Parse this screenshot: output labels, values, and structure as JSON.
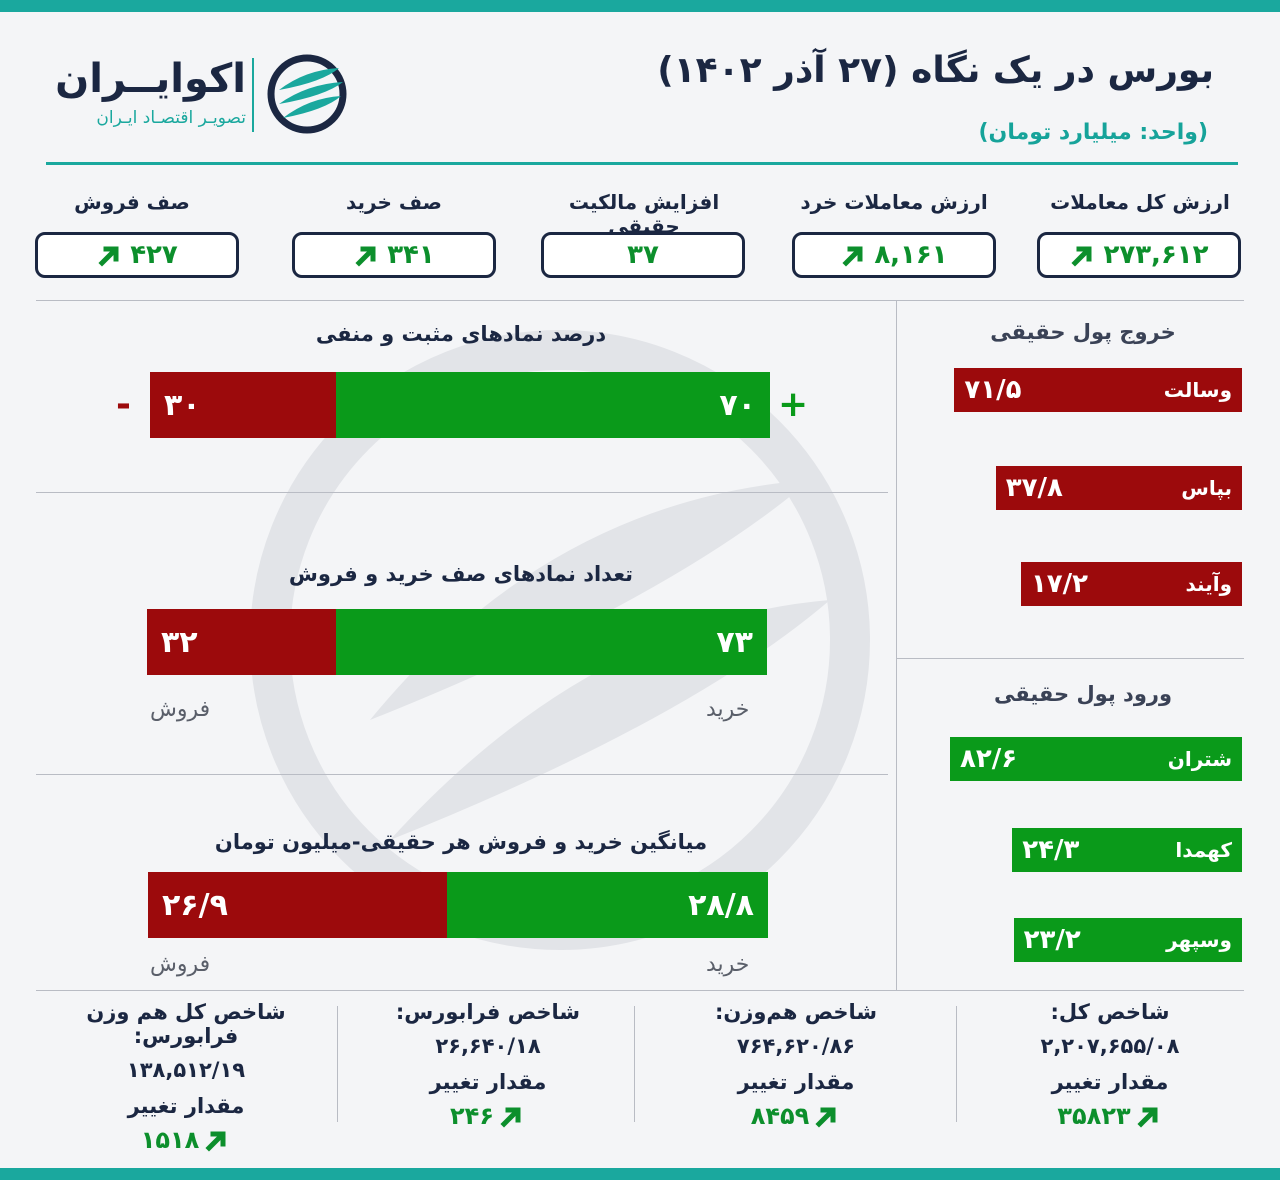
{
  "header": {
    "title": "بورس در یک نگاه (۲۷ آذر ۱۴۰۲)",
    "unit": "(واحد: میلیارد تومان)",
    "logo_name": "اکوایــران",
    "logo_tagline": "تصویـر اقتصـاد ایـران"
  },
  "stats": [
    {
      "label": "ارزش کل معاملات",
      "value": "۲۷۳,۶۱۲",
      "trend": "up"
    },
    {
      "label": "ارزش معاملات خرد",
      "value": "۸,۱۶۱",
      "trend": "up"
    },
    {
      "label": "افزایش مالکیت حقیقی",
      "value": "۳۷",
      "trend": "none"
    },
    {
      "label": "صف خرید",
      "value": "۳۴۱",
      "trend": "up"
    },
    {
      "label": "صف فروش",
      "value": "۴۲۷",
      "trend": "up"
    }
  ],
  "chart_data": [
    {
      "type": "bar",
      "title": "درصد نمادهای مثبت و منفی",
      "series": [
        {
          "label": "۷۰",
          "value": 70,
          "color": "#0a9a1a",
          "sign": "+"
        },
        {
          "label": "۳۰",
          "value": 30,
          "color": "#9c0a0c",
          "sign": "-"
        }
      ]
    },
    {
      "type": "bar",
      "title": "تعداد نمادهای صف خرید و فروش",
      "series": [
        {
          "name": "خرید",
          "label": "۷۳",
          "value": 73,
          "color": "#0a9a1a"
        },
        {
          "name": "فروش",
          "label": "۳۲",
          "value": 32,
          "color": "#9c0a0c"
        }
      ]
    },
    {
      "type": "bar",
      "title": "میانگین خرید و فروش هر حقیقی-میلیون تومان",
      "series": [
        {
          "name": "خرید",
          "label": "۲۸/۸",
          "value": 28.8,
          "color": "#0a9a1a"
        },
        {
          "name": "فروش",
          "label": "۲۶/۹",
          "value": 26.9,
          "color": "#9c0a0c"
        }
      ]
    },
    {
      "type": "bar",
      "title": "خروج پول حقیقی",
      "categories": [
        "وسالت",
        "بپاس",
        "وآیند"
      ],
      "value_labels": [
        "۷۱/۵",
        "۳۷/۸",
        "۱۷/۲"
      ],
      "values": [
        71.5,
        37.8,
        17.2
      ],
      "color": "#9c0a0c"
    },
    {
      "type": "bar",
      "title": "ورود پول حقیقی",
      "categories": [
        "شتران",
        "کهمدا",
        "وسپهر"
      ],
      "value_labels": [
        "۸۲/۶",
        "۲۴/۳",
        "۲۳/۲"
      ],
      "values": [
        82.6,
        24.3,
        23.2
      ],
      "color": "#0a9a1a"
    }
  ],
  "indices": [
    {
      "name": "شاخص کل:",
      "value": "۲,۲۰۷,۶۵۵/۰۸",
      "change_label": "مقدار تغییر",
      "change": "۳۵۸۲۳"
    },
    {
      "name": "شاخص هم‌وزن:",
      "value": "۷۶۴,۶۲۰/۸۶",
      "change_label": "مقدار تغییر",
      "change": "۸۴۵۹"
    },
    {
      "name": "شاخص فرابورس:",
      "value": "۲۶,۶۴۰/۱۸",
      "change_label": "مقدار تغییر",
      "change": "۲۴۶"
    },
    {
      "name": "شاخص کل هم وزن فرابورس:",
      "value": "۱۳۸,۵۱۲/۱۹",
      "change_label": "مقدار تغییر",
      "change": "۱۵۱۸"
    }
  ],
  "colors": {
    "accent": "#1aa89e",
    "navy": "#1b2742",
    "positive": "#0a9a1a",
    "negative": "#9c0a0c"
  }
}
